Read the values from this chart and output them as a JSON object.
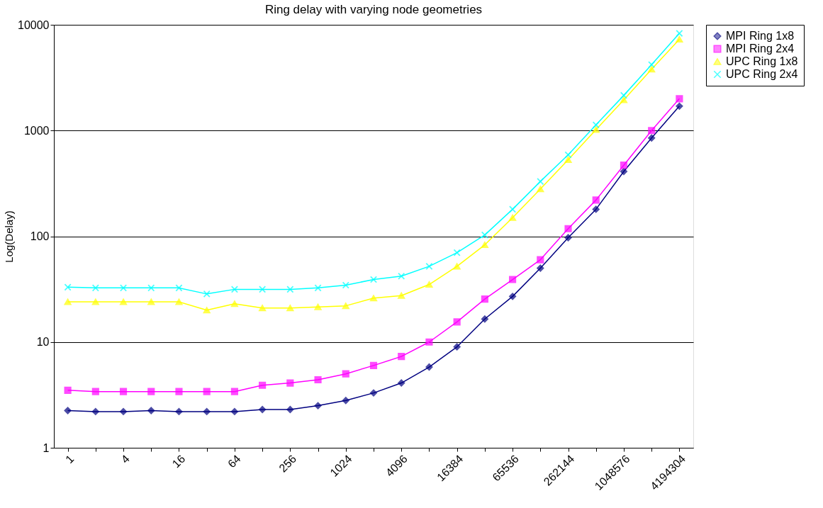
{
  "chart_data": {
    "type": "line",
    "title": "Ring delay with varying node geometries",
    "ylabel": "Log(Delay)",
    "categories": [
      "1",
      null,
      "4",
      null,
      "16",
      null,
      "64",
      null,
      "256",
      null,
      "1024",
      null,
      "4096",
      null,
      "16384",
      null,
      "65536",
      null,
      "262144",
      null,
      "1048576",
      null,
      "4194304"
    ],
    "log": true,
    "ylim": [
      1,
      10000
    ],
    "yticks": [
      1,
      10,
      100,
      1000,
      10000
    ],
    "grid": "y",
    "legend": "right",
    "series": [
      {
        "name": "MPI Ring 1x8",
        "color": "#000080",
        "marker": "diamond",
        "values": [
          2.25,
          2.2,
          2.2,
          2.25,
          2.2,
          2.2,
          2.2,
          2.3,
          2.3,
          2.5,
          2.8,
          3.3,
          4.1,
          5.8,
          9,
          16.5,
          27,
          50,
          97,
          180,
          410,
          850,
          1700
        ]
      },
      {
        "name": "MPI Ring 2x4",
        "color": "#ff00ff",
        "marker": "square",
        "values": [
          3.5,
          3.4,
          3.4,
          3.4,
          3.4,
          3.4,
          3.4,
          3.9,
          4.1,
          4.4,
          5,
          6,
          7.3,
          10,
          15.5,
          25.5,
          39,
          60,
          118,
          220,
          470,
          1000,
          2000
        ]
      },
      {
        "name": "UPC Ring 1x8",
        "color": "#ffff00",
        "marker": "triangle",
        "values": [
          24,
          24,
          24,
          24,
          24,
          20,
          23,
          21,
          21,
          21.5,
          22,
          26,
          27.5,
          35,
          52,
          83,
          150,
          280,
          530,
          1020,
          1950,
          3800,
          7300
        ]
      },
      {
        "name": "UPC Ring 2x4",
        "color": "#00ffff",
        "marker": "cross",
        "values": [
          33,
          32.5,
          32.5,
          32.5,
          32.5,
          28.5,
          31.5,
          31.5,
          31.5,
          32.5,
          34.5,
          39,
          42,
          52,
          70,
          103,
          180,
          330,
          590,
          1130,
          2150,
          4200,
          8300
        ]
      }
    ]
  }
}
